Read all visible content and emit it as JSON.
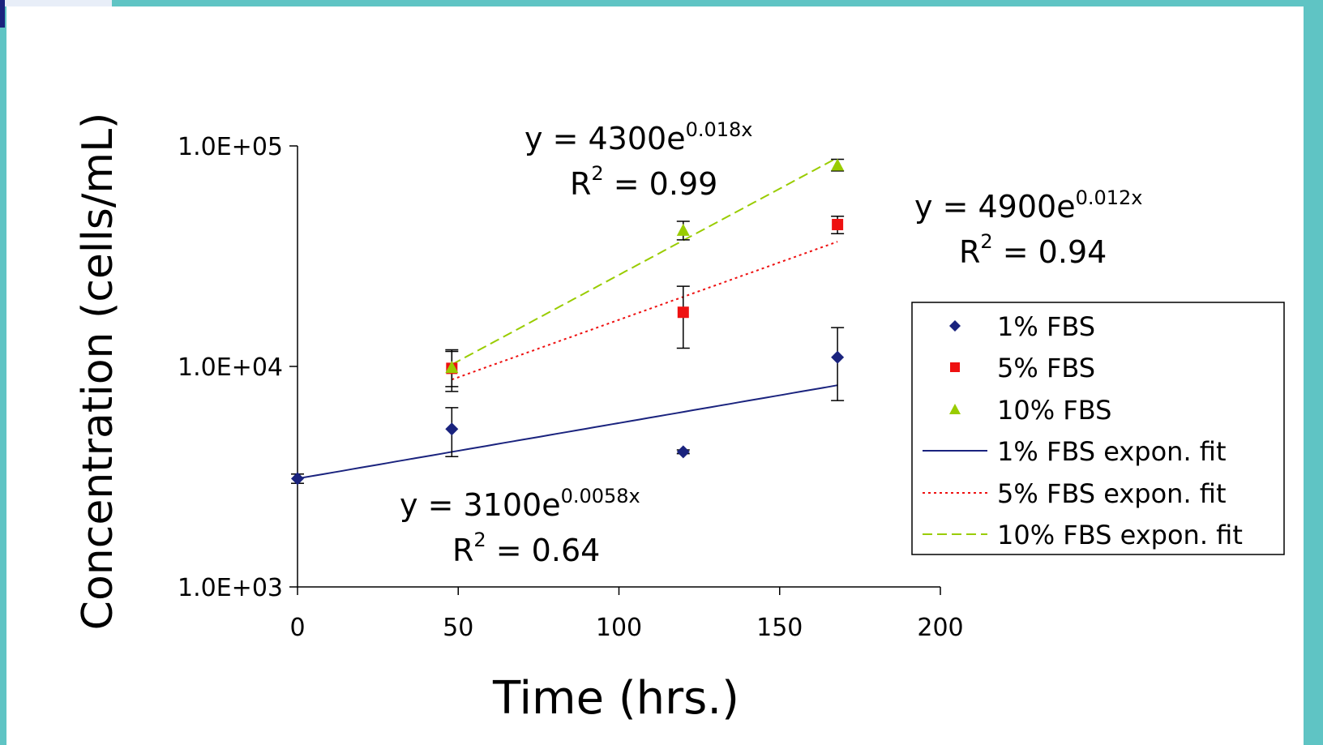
{
  "chart_data": {
    "type": "scatter",
    "xlabel": "Time (hrs.)",
    "ylabel": "Concentration (cells/mL)",
    "x_ticks": [
      0,
      50,
      100,
      150,
      200
    ],
    "y_ticks": [
      1000,
      10000,
      100000
    ],
    "y_tick_labels": [
      "1.0E+03",
      "1.0E+04",
      "1.0E+05"
    ],
    "xlim": [
      0,
      200
    ],
    "ylim": [
      1000,
      100000
    ],
    "yscale": "log",
    "grid": false,
    "legend_position": "right",
    "series": [
      {
        "name": "1% FBS",
        "color": "#1a237e",
        "marker": "diamond",
        "points": [
          {
            "x": 0,
            "y": 3100,
            "err": 150
          },
          {
            "x": 48,
            "y": 5200,
            "err": 1300
          },
          {
            "x": 120,
            "y": 4100,
            "err": 80
          },
          {
            "x": 168,
            "y": 11000,
            "err": 4000
          }
        ]
      },
      {
        "name": "5% FBS",
        "color": "#ee1111",
        "marker": "square",
        "points": [
          {
            "x": 48,
            "y": 9800,
            "err": 2100
          },
          {
            "x": 120,
            "y": 17600,
            "err": 5500
          },
          {
            "x": 168,
            "y": 44000,
            "err": 4000
          }
        ]
      },
      {
        "name": "10% FBS",
        "color": "#99cc00",
        "marker": "triangle",
        "points": [
          {
            "x": 48,
            "y": 9900,
            "err": 1800
          },
          {
            "x": 120,
            "y": 41500,
            "err": 4000
          },
          {
            "x": 168,
            "y": 82000,
            "err": 5000
          }
        ]
      }
    ],
    "fits": [
      {
        "name": "1% FBS expon. fit",
        "color": "#1a237e",
        "dash": "solid",
        "a": 3100,
        "b": 0.0058,
        "x_range": [
          0,
          168
        ]
      },
      {
        "name": "5% FBS expon. fit",
        "color": "#ee1111",
        "dash": "dotted",
        "a": 4900,
        "b": 0.012,
        "x_range": [
          48,
          168
        ]
      },
      {
        "name": "10% FBS expon. fit",
        "color": "#99cc00",
        "dash": "dashed",
        "a": 4300,
        "b": 0.018,
        "x_range": [
          48,
          168
        ]
      }
    ],
    "annotations": [
      {
        "id": "fit-10",
        "y_text": "y = 4300e",
        "exp": "0.018x",
        "r_text": "R",
        "r_sup": "2",
        "r_val": " = 0.99"
      },
      {
        "id": "fit-5",
        "y_text": "y = 4900e",
        "exp": "0.012x",
        "r_text": "R",
        "r_sup": "2",
        "r_val": " = 0.94"
      },
      {
        "id": "fit-1",
        "y_text": "y = 3100e",
        "exp": "0.0058x",
        "r_text": "R",
        "r_sup": "2",
        "r_val": " = 0.64"
      }
    ]
  }
}
